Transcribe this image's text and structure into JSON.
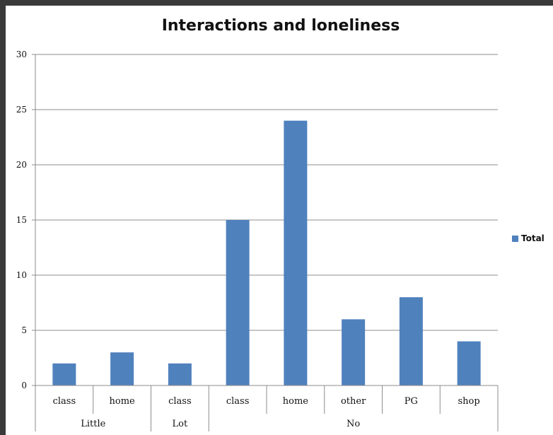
{
  "chart_data": {
    "type": "bar",
    "title": "Interactions and loneliness",
    "xlabel": "",
    "ylabel": "",
    "ylim": [
      0,
      30
    ],
    "yticks": [
      "0",
      "5",
      "10",
      "15",
      "20",
      "25",
      "30"
    ],
    "categories": [
      "class",
      "home",
      "class",
      "class",
      "home",
      "other",
      "PG",
      "shop"
    ],
    "groups": [
      {
        "label": "Little",
        "count": 2
      },
      {
        "label": "Lot",
        "count": 1
      },
      {
        "label": "No",
        "count": 5
      }
    ],
    "series": [
      {
        "name": "Total",
        "values": [
          2,
          3,
          2,
          15,
          24,
          6,
          8,
          4
        ]
      }
    ],
    "grid": true,
    "legend": "right",
    "colors": {
      "bar": "#4f81bd",
      "grid": "#8c8c8c",
      "axis": "#8c8c8c",
      "frame_bg": "#3a3a3a"
    }
  }
}
